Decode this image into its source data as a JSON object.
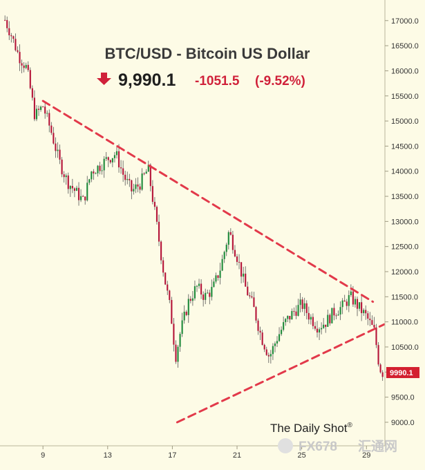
{
  "chart_data": {
    "type": "candlestick",
    "title": "BTC/USD - Bitcoin US Dollar",
    "last_price": "9,990.1",
    "change_abs": "-1051.5",
    "change_pct": "(-9.52%)",
    "current_label": "9990.1",
    "current_value": 9990.1,
    "ylim": [
      8600,
      17300
    ],
    "yticks": [
      9000,
      9500,
      10000,
      10500,
      11000,
      11500,
      12000,
      12500,
      13000,
      13500,
      14000,
      14500,
      15000,
      15500,
      16000,
      16500,
      17000
    ],
    "ytick_labels": [
      "9000.0",
      "9500.0",
      "10000.0",
      "10500.0",
      "11000.0",
      "11500.0",
      "12000.0",
      "12500.0",
      "13000.0",
      "13500.0",
      "14000.0",
      "14500.0",
      "15000.0",
      "15500.0",
      "16000.0",
      "16500.0",
      "17000.0"
    ],
    "xlim": [
      6.6,
      30.1
    ],
    "xticks": [
      9,
      13,
      17,
      21,
      25,
      29
    ],
    "xtick_labels": [
      "9",
      "13",
      "17",
      "21",
      "25",
      "29"
    ],
    "series": [
      {
        "path": [
          [
            6.6,
            17050
          ],
          [
            7.0,
            16750
          ],
          [
            7.5,
            16300
          ],
          [
            8.0,
            16050
          ],
          [
            8.5,
            15100
          ],
          [
            9.0,
            15300
          ],
          [
            9.5,
            14800
          ],
          [
            10.0,
            14200
          ],
          [
            10.5,
            13800
          ],
          [
            11.0,
            13600
          ],
          [
            11.5,
            13400
          ],
          [
            12.0,
            14000
          ],
          [
            12.5,
            14100
          ],
          [
            13.0,
            14250
          ],
          [
            13.5,
            14350
          ],
          [
            14.0,
            13900
          ],
          [
            14.5,
            13600
          ],
          [
            15.0,
            13750
          ],
          [
            15.5,
            14050
          ],
          [
            16.0,
            13000
          ],
          [
            16.5,
            11900
          ],
          [
            16.9,
            11200
          ],
          [
            17.2,
            10300
          ],
          [
            17.5,
            10800
          ],
          [
            18.0,
            11400
          ],
          [
            18.5,
            11700
          ],
          [
            19.0,
            11500
          ],
          [
            19.5,
            11650
          ],
          [
            20.0,
            12100
          ],
          [
            20.5,
            12800
          ],
          [
            21.0,
            12300
          ],
          [
            21.5,
            11700
          ],
          [
            22.0,
            11300
          ],
          [
            22.5,
            10700
          ],
          [
            23.0,
            10300
          ],
          [
            23.5,
            10700
          ],
          [
            24.0,
            11000
          ],
          [
            24.5,
            11200
          ],
          [
            25.0,
            11350
          ],
          [
            25.5,
            11100
          ],
          [
            26.0,
            10900
          ],
          [
            26.5,
            11000
          ],
          [
            27.0,
            11200
          ],
          [
            27.5,
            11300
          ],
          [
            28.0,
            11500
          ],
          [
            28.5,
            11300
          ],
          [
            29.0,
            11100
          ],
          [
            29.5,
            10800
          ],
          [
            29.8,
            10100
          ],
          [
            30.0,
            9990
          ]
        ]
      }
    ],
    "annotations": [
      {
        "type": "trendline-resistance",
        "from": [
          9.0,
          15400
        ],
        "to": [
          29.4,
          11400
        ]
      },
      {
        "type": "trendline-support",
        "from": [
          17.3,
          9000
        ],
        "to": [
          30.1,
          10950
        ]
      }
    ],
    "colors": {
      "up": "#1f8a3b",
      "down": "#b5163a",
      "trendline": "#e2394a",
      "label_bg": "#d32030",
      "background": "#fdfbe6"
    },
    "grid": false
  },
  "watermark": {
    "brand": "The Daily Shot",
    "registered": "®",
    "logo_text": "FX678",
    "logo_text2": "汇通网"
  }
}
